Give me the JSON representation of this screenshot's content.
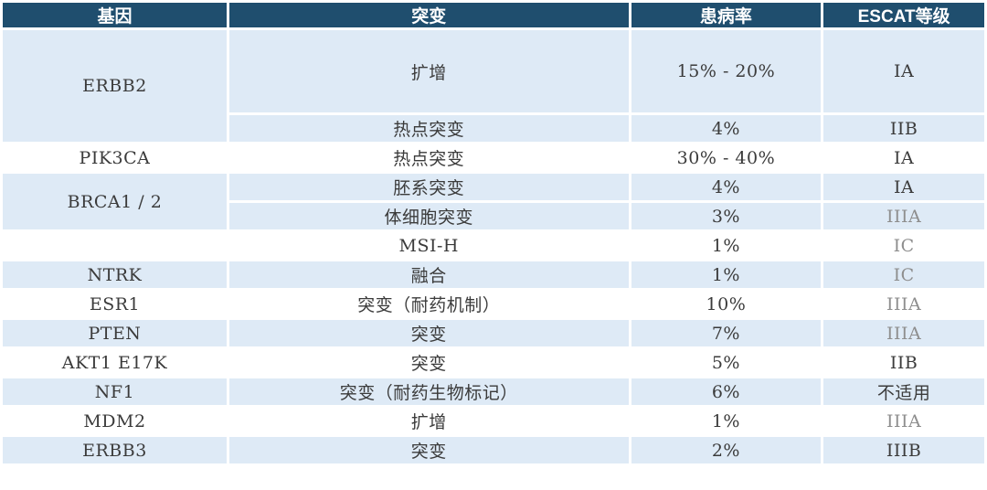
{
  "colors": {
    "header_bg": "#1F4E6E",
    "band_blue": "#DEEAF6",
    "band_white": "#FFFFFF",
    "header_text": "#FFFFFF",
    "body_text": "#3B3B3B",
    "escat_muted_text": "#8E8E8E"
  },
  "table": {
    "headers": [
      "基因",
      "突变",
      "患病率",
      "ESCAT等级"
    ],
    "rows": [
      {
        "gene": "ERBB2",
        "mutation": "扩增",
        "prevalence": "15% - 20%",
        "escat": "IA"
      },
      {
        "gene": "ERBB2",
        "mutation": "热点突变",
        "prevalence": "4%",
        "escat": "IIB"
      },
      {
        "gene": "PIK3CA",
        "mutation": "热点突变",
        "prevalence": "30% - 40%",
        "escat": "IA"
      },
      {
        "gene": "BRCA1 / 2",
        "mutation": "胚系突变",
        "prevalence": "4%",
        "escat": "IA"
      },
      {
        "gene": "BRCA1 / 2",
        "mutation": "体细胞突变",
        "prevalence": "3%",
        "escat": "IIIA"
      },
      {
        "gene": "",
        "mutation": "MSI-H",
        "prevalence": "1%",
        "escat": "IC"
      },
      {
        "gene": "NTRK",
        "mutation": "融合",
        "prevalence": "1%",
        "escat": "IC"
      },
      {
        "gene": "ESR1",
        "mutation": "突变（耐药机制）",
        "prevalence": "10%",
        "escat": "IIIA"
      },
      {
        "gene": "PTEN",
        "mutation": "突变",
        "prevalence": "7%",
        "escat": "IIIA"
      },
      {
        "gene": "AKT1 E17K",
        "mutation": "突变",
        "prevalence": "5%",
        "escat": "IIB"
      },
      {
        "gene": "NF1",
        "mutation": "突变（耐药生物标记）",
        "prevalence": "6%",
        "escat": "不适用"
      },
      {
        "gene": "MDM2",
        "mutation": "扩增",
        "prevalence": "1%",
        "escat": "IIIA"
      },
      {
        "gene": "ERBB3",
        "mutation": "突变",
        "prevalence": "2%",
        "escat": "IIIB"
      }
    ]
  },
  "chart_data": {
    "type": "table",
    "title": "",
    "columns": [
      "基因",
      "突变",
      "患病率",
      "ESCAT等级"
    ],
    "rows": [
      [
        "ERBB2",
        "扩增",
        "15% - 20%",
        "IA"
      ],
      [
        "ERBB2",
        "热点突变",
        "4%",
        "IIB"
      ],
      [
        "PIK3CA",
        "热点突变",
        "30% - 40%",
        "IA"
      ],
      [
        "BRCA1 / 2",
        "胚系突变",
        "4%",
        "IA"
      ],
      [
        "BRCA1 / 2",
        "体细胞突变",
        "3%",
        "IIIA"
      ],
      [
        "",
        "MSI-H",
        "1%",
        "IC"
      ],
      [
        "NTRK",
        "融合",
        "1%",
        "IC"
      ],
      [
        "ESR1",
        "突变（耐药机制）",
        "10%",
        "IIIA"
      ],
      [
        "PTEN",
        "突变",
        "7%",
        "IIIA"
      ],
      [
        "AKT1 E17K",
        "突变",
        "5%",
        "IIB"
      ],
      [
        "NF1",
        "突变（耐药生物标记）",
        "6%",
        "不适用"
      ],
      [
        "MDM2",
        "扩增",
        "1%",
        "IIIA"
      ],
      [
        "ERBB3",
        "突变",
        "2%",
        "IIIB"
      ]
    ],
    "layout_hints": {
      "merged_gene_cells": [
        [
          0,
          1
        ],
        [
          3,
          4
        ]
      ],
      "muted_escat_row_indexes": [
        4,
        5,
        6,
        7,
        8,
        11
      ],
      "row_banding": "alternates per gene group: blue, white"
    }
  }
}
